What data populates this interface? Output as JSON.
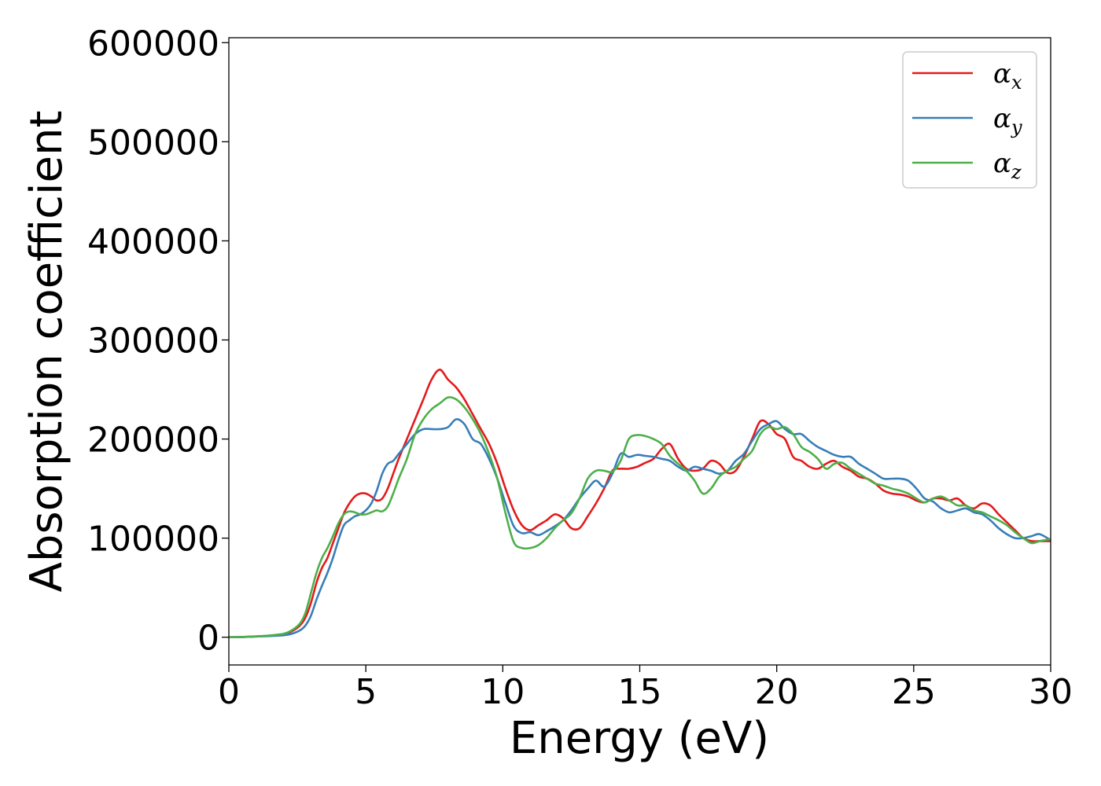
{
  "chart_data": {
    "type": "line",
    "xlabel": "Energy (eV)",
    "ylabel": "Absorption coefficient",
    "xlim": [
      0,
      30
    ],
    "ylim": [
      -28000,
      605000
    ],
    "xticks": [
      0,
      5,
      10,
      15,
      20,
      25,
      30
    ],
    "yticks": [
      0,
      100000,
      200000,
      300000,
      400000,
      500000,
      600000
    ],
    "grid": false,
    "legend_position": "top-right",
    "x": [
      0,
      0.5,
      1,
      1.5,
      2,
      2.3,
      2.6,
      2.8,
      3,
      3.2,
      3.4,
      3.6,
      3.8,
      4,
      4.2,
      4.4,
      4.6,
      4.8,
      5,
      5.2,
      5.4,
      5.6,
      5.8,
      6,
      6.2,
      6.5,
      6.8,
      7.1,
      7.4,
      7.7,
      8,
      8.3,
      8.6,
      8.9,
      9.2,
      9.5,
      9.8,
      10.1,
      10.4,
      10.7,
      11,
      11.3,
      11.6,
      11.9,
      12.2,
      12.5,
      12.8,
      13.1,
      13.4,
      13.7,
      14,
      14.3,
      14.6,
      14.9,
      15.2,
      15.5,
      15.8,
      16.1,
      16.4,
      16.7,
      17,
      17.3,
      17.6,
      17.9,
      18.2,
      18.5,
      18.8,
      19.1,
      19.4,
      19.7,
      20,
      20.3,
      20.6,
      20.9,
      21.2,
      21.5,
      21.8,
      22.1,
      22.4,
      22.7,
      23,
      23.3,
      23.6,
      23.9,
      24.2,
      24.5,
      24.8,
      25.1,
      25.4,
      25.7,
      26,
      26.3,
      26.6,
      26.9,
      27.2,
      27.5,
      27.8,
      28.1,
      28.4,
      28.7,
      29,
      29.3,
      29.6,
      30
    ],
    "series": [
      {
        "name": "α",
        "name_sub": "x",
        "color": "#e41a1c",
        "values": [
          0,
          200,
          800,
          1500,
          3000,
          6000,
          12000,
          20000,
          35000,
          55000,
          70000,
          80000,
          95000,
          110000,
          125000,
          135000,
          142000,
          145000,
          145000,
          142000,
          138000,
          140000,
          150000,
          165000,
          180000,
          200000,
          220000,
          240000,
          260000,
          270000,
          260000,
          252000,
          240000,
          225000,
          210000,
          195000,
          175000,
          150000,
          128000,
          113000,
          108000,
          113000,
          118000,
          124000,
          120000,
          110000,
          110000,
          122000,
          135000,
          150000,
          168000,
          170000,
          170000,
          172000,
          176000,
          180000,
          190000,
          195000,
          180000,
          170000,
          168000,
          170000,
          178000,
          175000,
          166000,
          168000,
          182000,
          200000,
          218000,
          215000,
          205000,
          200000,
          182000,
          178000,
          172000,
          170000,
          175000,
          178000,
          172000,
          168000,
          162000,
          160000,
          155000,
          148000,
          145000,
          144000,
          142000,
          138000,
          136000,
          140000,
          140000,
          138000,
          140000,
          133000,
          130000,
          135000,
          133000,
          124000,
          116000,
          108000,
          100000,
          97000,
          97000,
          97000
        ]
      },
      {
        "name": "α",
        "name_sub": "y",
        "color": "#377eb8",
        "values": [
          0,
          200,
          700,
          1200,
          2000,
          3500,
          7000,
          12000,
          22000,
          38000,
          52000,
          65000,
          80000,
          98000,
          113000,
          118000,
          122000,
          124000,
          128000,
          135000,
          148000,
          165000,
          175000,
          178000,
          185000,
          195000,
          205000,
          210000,
          210000,
          210000,
          212000,
          220000,
          215000,
          200000,
          195000,
          180000,
          160000,
          135000,
          112000,
          105000,
          106000,
          103000,
          107000,
          112000,
          118000,
          128000,
          140000,
          150000,
          158000,
          152000,
          165000,
          185000,
          182000,
          184000,
          183000,
          182000,
          180000,
          178000,
          172000,
          168000,
          172000,
          170000,
          168000,
          165000,
          168000,
          178000,
          185000,
          198000,
          210000,
          215000,
          218000,
          210000,
          205000,
          205000,
          198000,
          192000,
          188000,
          184000,
          182000,
          182000,
          175000,
          170000,
          165000,
          160000,
          160000,
          160000,
          158000,
          150000,
          140000,
          137000,
          130000,
          126000,
          128000,
          130000,
          126000,
          124000,
          118000,
          110000,
          104000,
          100000,
          100000,
          102000,
          104000,
          98000
        ]
      },
      {
        "name": "α",
        "name_sub": "z",
        "color": "#4daf4a",
        "values": [
          0,
          300,
          900,
          1800,
          3500,
          7000,
          14000,
          25000,
          45000,
          65000,
          80000,
          90000,
          102000,
          115000,
          124000,
          127000,
          126000,
          124000,
          124000,
          126000,
          128000,
          127000,
          132000,
          145000,
          160000,
          180000,
          205000,
          220000,
          230000,
          236000,
          242000,
          240000,
          232000,
          220000,
          205000,
          185000,
          160000,
          125000,
          96000,
          90000,
          90000,
          93000,
          100000,
          110000,
          118000,
          125000,
          140000,
          160000,
          168000,
          168000,
          167000,
          178000,
          200000,
          204000,
          203000,
          200000,
          195000,
          183000,
          175000,
          168000,
          158000,
          145000,
          150000,
          162000,
          168000,
          172000,
          180000,
          188000,
          205000,
          212000,
          210000,
          212000,
          205000,
          192000,
          187000,
          180000,
          170000,
          175000,
          176000,
          170000,
          165000,
          160000,
          155000,
          153000,
          150000,
          148000,
          145000,
          140000,
          136000,
          140000,
          142000,
          138000,
          133000,
          133000,
          128000,
          126000,
          122000,
          118000,
          113000,
          106000,
          100000,
          95000,
          97000,
          99000
        ]
      }
    ]
  }
}
